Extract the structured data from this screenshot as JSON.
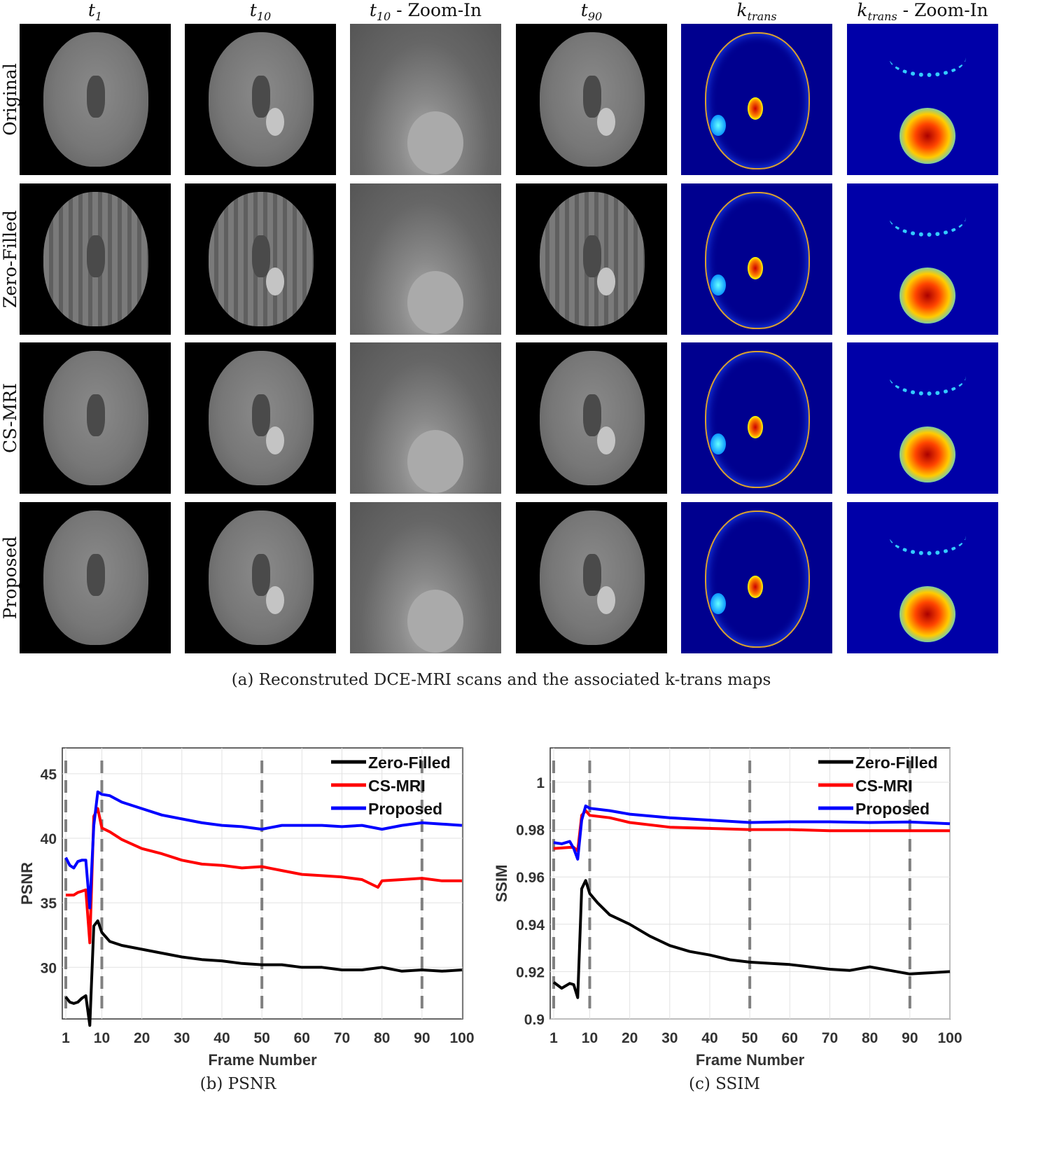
{
  "columns": [
    {
      "base": "t",
      "sub": "1",
      "suffix": ""
    },
    {
      "base": "t",
      "sub": "10",
      "suffix": ""
    },
    {
      "base": "t",
      "sub": "10",
      "suffix": " - Zoom-In"
    },
    {
      "base": "t",
      "sub": "90",
      "suffix": ""
    },
    {
      "base": "k",
      "sub": "trans",
      "suffix": ""
    },
    {
      "base": "k",
      "sub": "trans",
      "suffix": " - Zoom-In"
    }
  ],
  "rows": [
    "Original",
    "Zero-Filled",
    "CS-MRI",
    "Proposed"
  ],
  "captions": {
    "a": "(a) Reconstruted DCE-MRI scans and the associated k-trans maps",
    "b": "(b) PSNR",
    "c": "(c) SSIM"
  },
  "colors": {
    "Zero-Filled": "#000000",
    "CS-MRI": "#ff0000",
    "Proposed": "#0000ff",
    "marker_lines": "#808080"
  },
  "chart_data": [
    {
      "type": "line",
      "title": "",
      "xlabel": "Frame Number",
      "ylabel": "PSNR",
      "xlim": [
        1,
        100
      ],
      "ylim": [
        26,
        47
      ],
      "xticks": [
        1,
        10,
        20,
        30,
        40,
        50,
        60,
        70,
        80,
        90,
        100
      ],
      "yticks": [
        30,
        35,
        40,
        45
      ],
      "grid": true,
      "legend": "top-right",
      "vertical_dashed_markers": [
        1,
        10,
        50,
        90
      ],
      "series": [
        {
          "name": "Zero-Filled",
          "x": [
            1,
            2,
            3,
            4,
            5,
            6,
            7,
            8,
            9,
            10,
            12,
            15,
            20,
            25,
            30,
            35,
            40,
            45,
            50,
            55,
            60,
            65,
            70,
            75,
            80,
            85,
            90,
            95,
            100
          ],
          "y": [
            27.7,
            27.3,
            27.2,
            27.3,
            27.6,
            27.8,
            25.5,
            33.2,
            33.6,
            32.7,
            32.0,
            31.7,
            31.4,
            31.1,
            30.8,
            30.6,
            30.5,
            30.3,
            30.2,
            30.2,
            30.0,
            30.0,
            29.8,
            29.8,
            30.0,
            29.7,
            29.8,
            29.7,
            29.8
          ]
        },
        {
          "name": "CS-MRI",
          "x": [
            1,
            2,
            3,
            4,
            5,
            6,
            7,
            8,
            9,
            10,
            12,
            15,
            20,
            25,
            30,
            35,
            40,
            45,
            50,
            55,
            60,
            65,
            70,
            75,
            79,
            80,
            85,
            90,
            95,
            100
          ],
          "y": [
            35.6,
            35.6,
            35.6,
            35.8,
            35.9,
            36.0,
            31.9,
            41.7,
            42.3,
            40.8,
            40.5,
            39.9,
            39.2,
            38.8,
            38.3,
            38.0,
            37.9,
            37.7,
            37.8,
            37.5,
            37.2,
            37.1,
            37.0,
            36.8,
            36.2,
            36.7,
            36.8,
            36.9,
            36.7,
            36.7
          ]
        },
        {
          "name": "Proposed",
          "x": [
            1,
            2,
            3,
            4,
            5,
            6,
            7,
            8,
            9,
            10,
            12,
            15,
            20,
            25,
            30,
            35,
            40,
            45,
            50,
            55,
            60,
            65,
            70,
            75,
            80,
            85,
            90,
            95,
            100
          ],
          "y": [
            38.5,
            37.9,
            37.7,
            38.2,
            38.3,
            38.3,
            34.6,
            41.0,
            43.6,
            43.4,
            43.3,
            42.8,
            42.3,
            41.8,
            41.5,
            41.2,
            41.0,
            40.9,
            40.7,
            41.0,
            41.0,
            41.0,
            40.9,
            41.0,
            40.7,
            41.0,
            41.2,
            41.1,
            41.0
          ]
        }
      ]
    },
    {
      "type": "line",
      "title": "",
      "xlabel": "Frame Number",
      "ylabel": "SSIM",
      "xlim": [
        1,
        100
      ],
      "ylim": [
        0.9,
        1.0145
      ],
      "xticks": [
        1,
        10,
        20,
        30,
        40,
        50,
        60,
        70,
        80,
        90,
        100
      ],
      "yticks": [
        0.9,
        0.92,
        0.94,
        0.96,
        0.98,
        1
      ],
      "grid": true,
      "legend": "top-right",
      "vertical_dashed_markers": [
        1,
        10,
        50,
        90
      ],
      "series": [
        {
          "name": "Zero-Filled",
          "x": [
            1,
            3,
            5,
            6,
            7,
            8,
            9,
            10,
            12,
            15,
            20,
            25,
            30,
            35,
            40,
            45,
            50,
            55,
            60,
            65,
            70,
            75,
            80,
            85,
            90,
            95,
            100
          ],
          "y": [
            0.9155,
            0.913,
            0.915,
            0.9145,
            0.909,
            0.955,
            0.9585,
            0.953,
            0.949,
            0.944,
            0.94,
            0.935,
            0.931,
            0.9285,
            0.927,
            0.925,
            0.924,
            0.9235,
            0.923,
            0.922,
            0.921,
            0.9205,
            0.922,
            0.9205,
            0.919,
            0.9195,
            0.92
          ]
        },
        {
          "name": "CS-MRI",
          "x": [
            1,
            5,
            6,
            7,
            8,
            9,
            10,
            15,
            20,
            30,
            40,
            50,
            60,
            70,
            80,
            90,
            100
          ],
          "y": [
            0.972,
            0.9725,
            0.9725,
            0.971,
            0.986,
            0.988,
            0.986,
            0.985,
            0.983,
            0.981,
            0.9805,
            0.98,
            0.98,
            0.9795,
            0.9795,
            0.9795,
            0.9795
          ]
        },
        {
          "name": "Proposed",
          "x": [
            1,
            3,
            5,
            6,
            7,
            8,
            9,
            10,
            15,
            20,
            30,
            40,
            50,
            60,
            70,
            80,
            90,
            100
          ],
          "y": [
            0.9745,
            0.974,
            0.975,
            0.972,
            0.9675,
            0.984,
            0.99,
            0.989,
            0.988,
            0.9865,
            0.985,
            0.984,
            0.983,
            0.9833,
            0.9833,
            0.983,
            0.9832,
            0.9825
          ]
        }
      ]
    }
  ]
}
